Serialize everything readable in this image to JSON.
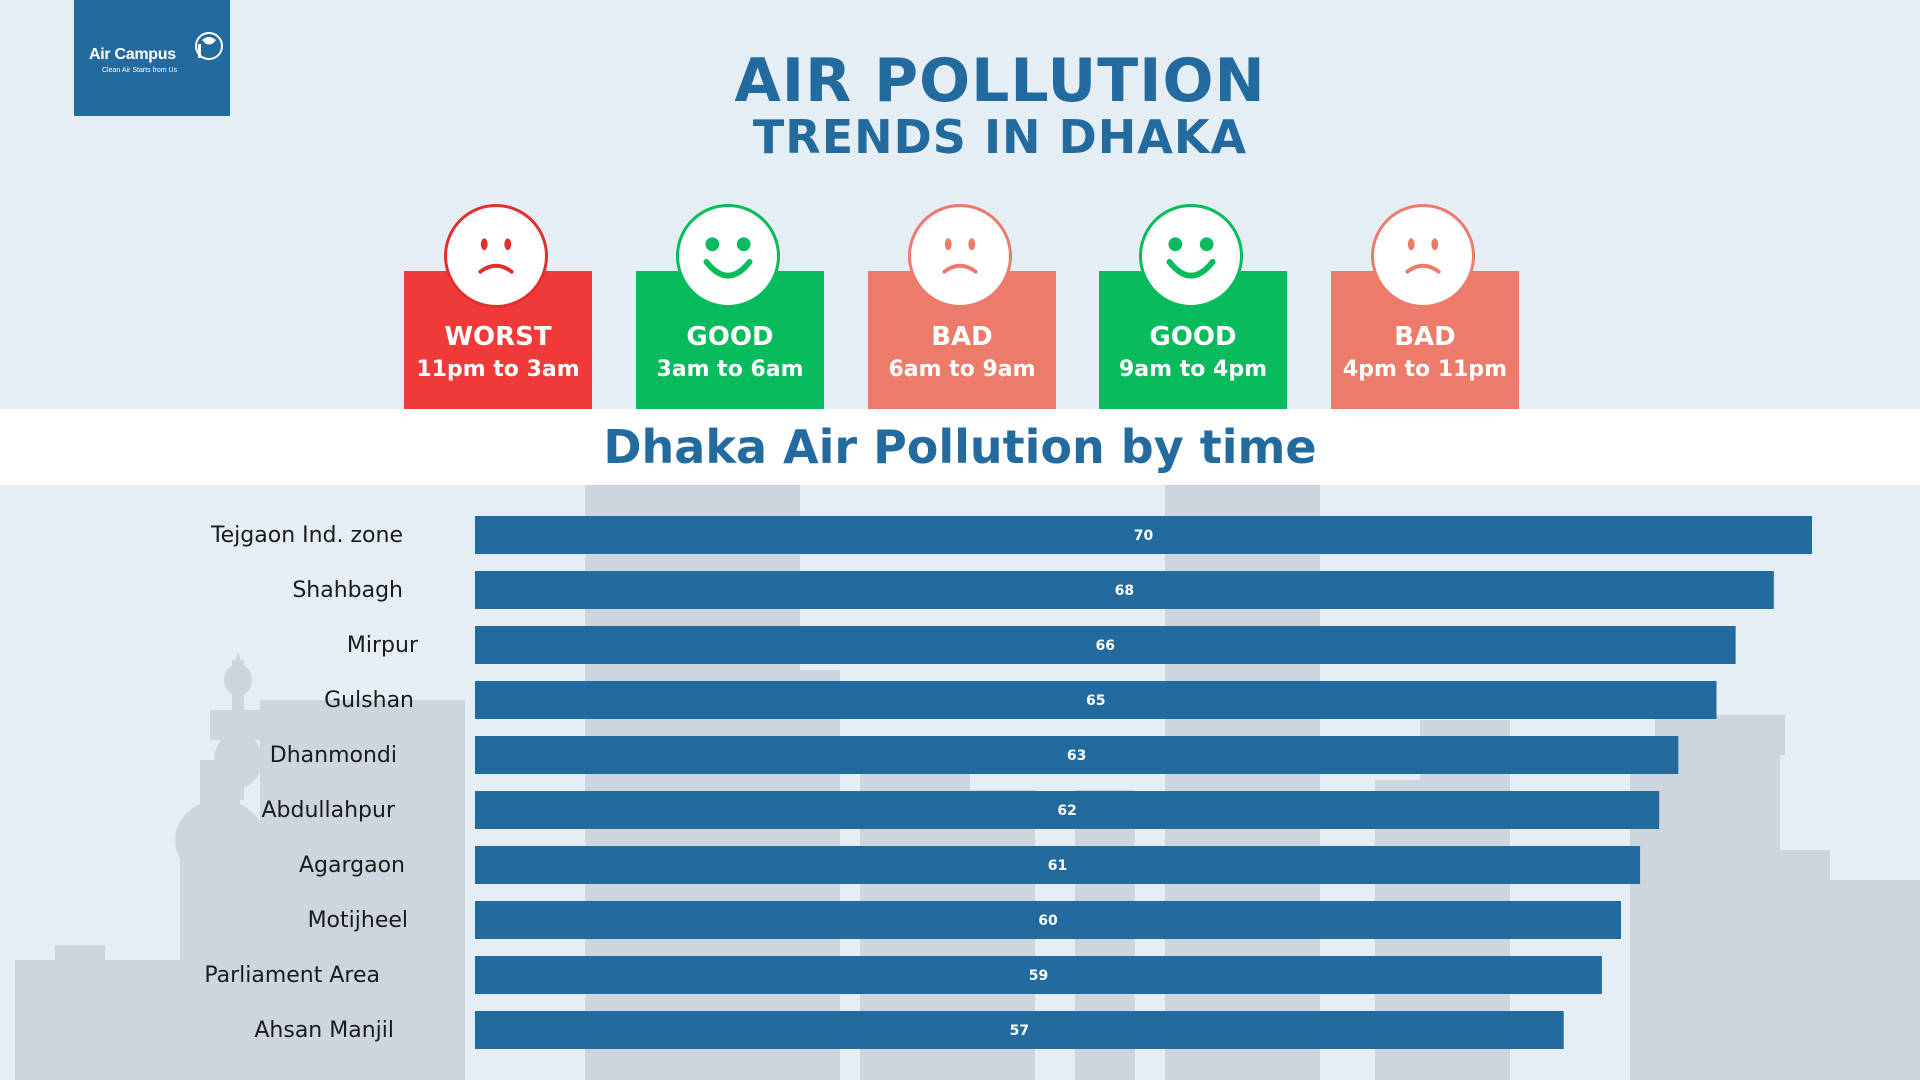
{
  "logo": {
    "brand": "Air Campus",
    "tagline": "Clean Air Starts from Us"
  },
  "header": {
    "title_line1": "AIR POLLUTION",
    "title_line2": "TRENDS IN DHAKA"
  },
  "status_cards": [
    {
      "label": "WORST",
      "time": "11pm to 3am",
      "mood": "sad",
      "color": "#f03a3a",
      "face_color": "#e0302c"
    },
    {
      "label": "GOOD",
      "time": "3am to 6am",
      "mood": "happy",
      "color": "#08bb5c",
      "face_color": "#08bb5c"
    },
    {
      "label": "BAD",
      "time": "6am to 9am",
      "mood": "sad",
      "color": "#ed7b6a",
      "face_color": "#ed7b6a"
    },
    {
      "label": "GOOD",
      "time": "9am to 4pm",
      "mood": "happy",
      "color": "#08bb5c",
      "face_color": "#08bb5c"
    },
    {
      "label": "BAD",
      "time": "4pm to 11pm",
      "mood": "sad",
      "color": "#ed7b6a",
      "face_color": "#ed7b6a"
    }
  ],
  "chart_data": {
    "type": "bar",
    "orientation": "horizontal",
    "title": "Dhaka Air Pollution by time",
    "xlabel": "",
    "ylabel": "",
    "categories": [
      "Tejgaon Ind. zone",
      "Shahbagh",
      "Mirpur",
      "Gulshan",
      "Dhanmondi",
      "Abdullahpur",
      "Agargaon",
      "Motijheel",
      "Parliament Area",
      "Ahsan Manjil"
    ],
    "values": [
      70,
      68,
      66,
      65,
      63,
      62,
      61,
      60,
      59,
      57
    ],
    "xlim": [
      0,
      70
    ],
    "grid": false,
    "legend": "none",
    "bar_color": "#236a9e",
    "data_labels": true
  }
}
